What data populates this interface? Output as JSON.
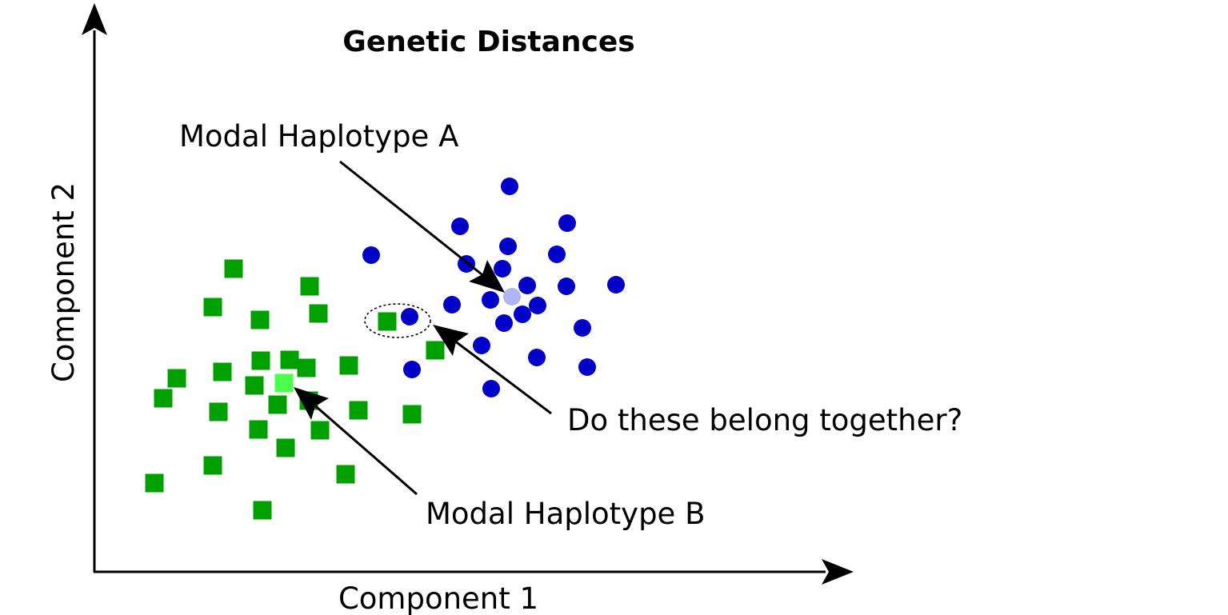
{
  "title": "Genetic Distances",
  "axes": {
    "x_label": "Component 1",
    "y_label": "Component 2"
  },
  "annotations": {
    "modal_a": "Modal Haplotype A",
    "modal_b": "Modal Haplotype B",
    "question": "Do these belong together?"
  },
  "colors": {
    "group_a": "#0000c8",
    "group_a_modal": "#b0b4f0",
    "group_b": "#00a000",
    "group_b_modal": "#4cff4c",
    "axis": "#000000"
  },
  "marker_shapes": {
    "group_a": "circle",
    "group_b": "square"
  },
  "chart_data": {
    "type": "scatter",
    "series": [
      {
        "key": "group_a",
        "shape": "circle",
        "points": [
          [
            637,
            233
          ],
          [
            575,
            283
          ],
          [
            709,
            279
          ],
          [
            635,
            308
          ],
          [
            696,
            318
          ],
          [
            464,
            319
          ],
          [
            583,
            330
          ],
          [
            628,
            336
          ],
          [
            659,
            357
          ],
          [
            708,
            358
          ],
          [
            770,
            356
          ],
          [
            613,
            375
          ],
          [
            672,
            382
          ],
          [
            565,
            381
          ],
          [
            653,
            393
          ],
          [
            512,
            396
          ],
          [
            630,
            404
          ],
          [
            728,
            410
          ],
          [
            602,
            432
          ],
          [
            671,
            447
          ],
          [
            734,
            459
          ],
          [
            515,
            462
          ],
          [
            614,
            486
          ]
        ],
        "modal": [
          640,
          371
        ]
      },
      {
        "key": "group_b",
        "shape": "square",
        "points": [
          [
            292,
            336
          ],
          [
            387,
            358
          ],
          [
            266,
            384
          ],
          [
            398,
            392
          ],
          [
            325,
            400
          ],
          [
            484,
            402
          ],
          [
            544,
            438
          ],
          [
            326,
            451
          ],
          [
            362,
            450
          ],
          [
            383,
            460
          ],
          [
            436,
            457
          ],
          [
            278,
            465
          ],
          [
            221,
            473
          ],
          [
            318,
            482
          ],
          [
            204,
            498
          ],
          [
            386,
            501
          ],
          [
            347,
            506
          ],
          [
            273,
            515
          ],
          [
            448,
            513
          ],
          [
            515,
            518
          ],
          [
            323,
            537
          ],
          [
            400,
            538
          ],
          [
            357,
            560
          ],
          [
            266,
            582
          ],
          [
            432,
            593
          ],
          [
            193,
            604
          ],
          [
            328,
            638
          ]
        ],
        "modal": [
          355,
          479
        ]
      }
    ],
    "highlight_ellipse": {
      "cx": 497,
      "cy": 401,
      "rx": 41,
      "ry": 21
    }
  }
}
